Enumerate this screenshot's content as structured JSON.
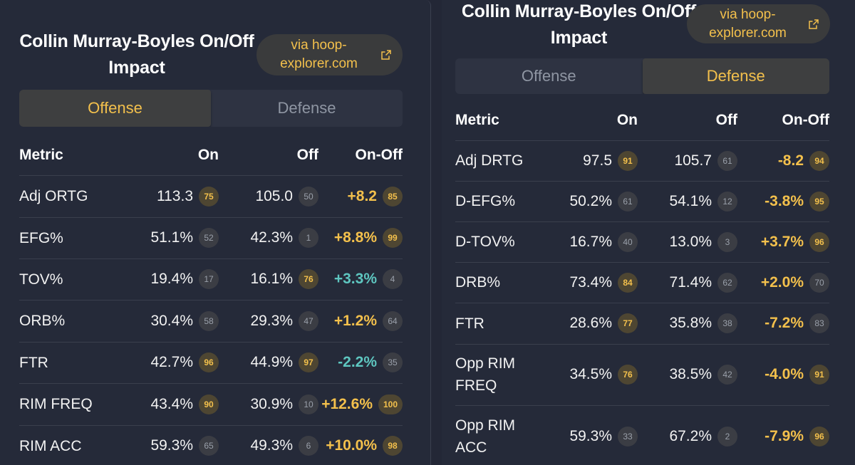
{
  "left": {
    "title_line1": "Collin Murray-Boyles On/Off",
    "title_line2": "Impact",
    "source_line1": "via hoop-",
    "source_line2": "explorer.com",
    "tabs": [
      {
        "label": "Offense",
        "active": true
      },
      {
        "label": "Defense",
        "active": false
      }
    ],
    "headers": {
      "metric": "Metric",
      "on": "On",
      "off": "Off",
      "diff": "On-Off"
    },
    "rows": [
      {
        "metric": "Adj ORTG",
        "on": "113.3",
        "on_pct": "75",
        "on_hi": true,
        "off": "105.0",
        "off_pct": "50",
        "off_hi": false,
        "diff": "+8.2",
        "diff_color": "gold",
        "diff_pct": "85",
        "diff_hi": true
      },
      {
        "metric": "EFG%",
        "on": "51.1%",
        "on_pct": "52",
        "on_hi": false,
        "off": "42.3%",
        "off_pct": "1",
        "off_hi": false,
        "diff": "+8.8%",
        "diff_color": "gold",
        "diff_pct": "99",
        "diff_hi": true
      },
      {
        "metric": "TOV%",
        "on": "19.4%",
        "on_pct": "17",
        "on_hi": false,
        "off": "16.1%",
        "off_pct": "76",
        "off_hi": true,
        "diff": "+3.3%",
        "diff_color": "teal",
        "diff_pct": "4",
        "diff_hi": false
      },
      {
        "metric": "ORB%",
        "on": "30.4%",
        "on_pct": "58",
        "on_hi": false,
        "off": "29.3%",
        "off_pct": "47",
        "off_hi": false,
        "diff": "+1.2%",
        "diff_color": "gold",
        "diff_pct": "64",
        "diff_hi": false
      },
      {
        "metric": "FTR",
        "on": "42.7%",
        "on_pct": "96",
        "on_hi": true,
        "off": "44.9%",
        "off_pct": "97",
        "off_hi": true,
        "diff": "-2.2%",
        "diff_color": "teal",
        "diff_pct": "35",
        "diff_hi": false
      },
      {
        "metric": "RIM FREQ",
        "on": "43.4%",
        "on_pct": "90",
        "on_hi": true,
        "off": "30.9%",
        "off_pct": "10",
        "off_hi": false,
        "diff": "+12.6%",
        "diff_color": "gold",
        "diff_pct": "100",
        "diff_hi": true
      },
      {
        "metric": "RIM ACC",
        "on": "59.3%",
        "on_pct": "65",
        "on_hi": false,
        "off": "49.3%",
        "off_pct": "6",
        "off_hi": false,
        "diff": "+10.0%",
        "diff_color": "gold",
        "diff_pct": "98",
        "diff_hi": true
      }
    ]
  },
  "right": {
    "title_line1": "Collin Murray-Boyles On/Off",
    "title_line2": "Impact",
    "source_line1": "via hoop-",
    "source_line2": "explorer.com",
    "tabs": [
      {
        "label": "Offense",
        "active": false
      },
      {
        "label": "Defense",
        "active": true
      }
    ],
    "headers": {
      "metric": "Metric",
      "on": "On",
      "off": "Off",
      "diff": "On-Off"
    },
    "rows": [
      {
        "metric": "Adj DRTG",
        "on": "97.5",
        "on_pct": "91",
        "on_hi": true,
        "off": "105.7",
        "off_pct": "61",
        "off_hi": false,
        "diff": "-8.2",
        "diff_color": "gold",
        "diff_pct": "94",
        "diff_hi": true
      },
      {
        "metric": "D-EFG%",
        "on": "50.2%",
        "on_pct": "61",
        "on_hi": false,
        "off": "54.1%",
        "off_pct": "12",
        "off_hi": false,
        "diff": "-3.8%",
        "diff_color": "gold",
        "diff_pct": "95",
        "diff_hi": true
      },
      {
        "metric": "D-TOV%",
        "on": "16.7%",
        "on_pct": "40",
        "on_hi": false,
        "off": "13.0%",
        "off_pct": "3",
        "off_hi": false,
        "diff": "+3.7%",
        "diff_color": "gold",
        "diff_pct": "96",
        "diff_hi": true
      },
      {
        "metric": "DRB%",
        "on": "73.4%",
        "on_pct": "84",
        "on_hi": true,
        "off": "71.4%",
        "off_pct": "62",
        "off_hi": false,
        "diff": "+2.0%",
        "diff_color": "gold",
        "diff_pct": "70",
        "diff_hi": false
      },
      {
        "metric": "FTR",
        "on": "28.6%",
        "on_pct": "77",
        "on_hi": true,
        "off": "35.8%",
        "off_pct": "38",
        "off_hi": false,
        "diff": "-7.2%",
        "diff_color": "gold",
        "diff_pct": "83",
        "diff_hi": false
      },
      {
        "metric": "Opp RIM FREQ",
        "on": "34.5%",
        "on_pct": "76",
        "on_hi": true,
        "off": "38.5%",
        "off_pct": "42",
        "off_hi": false,
        "diff": "-4.0%",
        "diff_color": "gold",
        "diff_pct": "91",
        "diff_hi": true
      },
      {
        "metric": "Opp RIM ACC",
        "on": "59.3%",
        "on_pct": "33",
        "on_hi": false,
        "off": "67.2%",
        "off_pct": "2",
        "off_hi": false,
        "diff": "-7.9%",
        "diff_color": "gold",
        "diff_pct": "96",
        "diff_hi": true
      }
    ]
  },
  "colors": {
    "accent_gold": "#f3c04c",
    "teal": "#5ec6c0",
    "background": "#252a39"
  }
}
